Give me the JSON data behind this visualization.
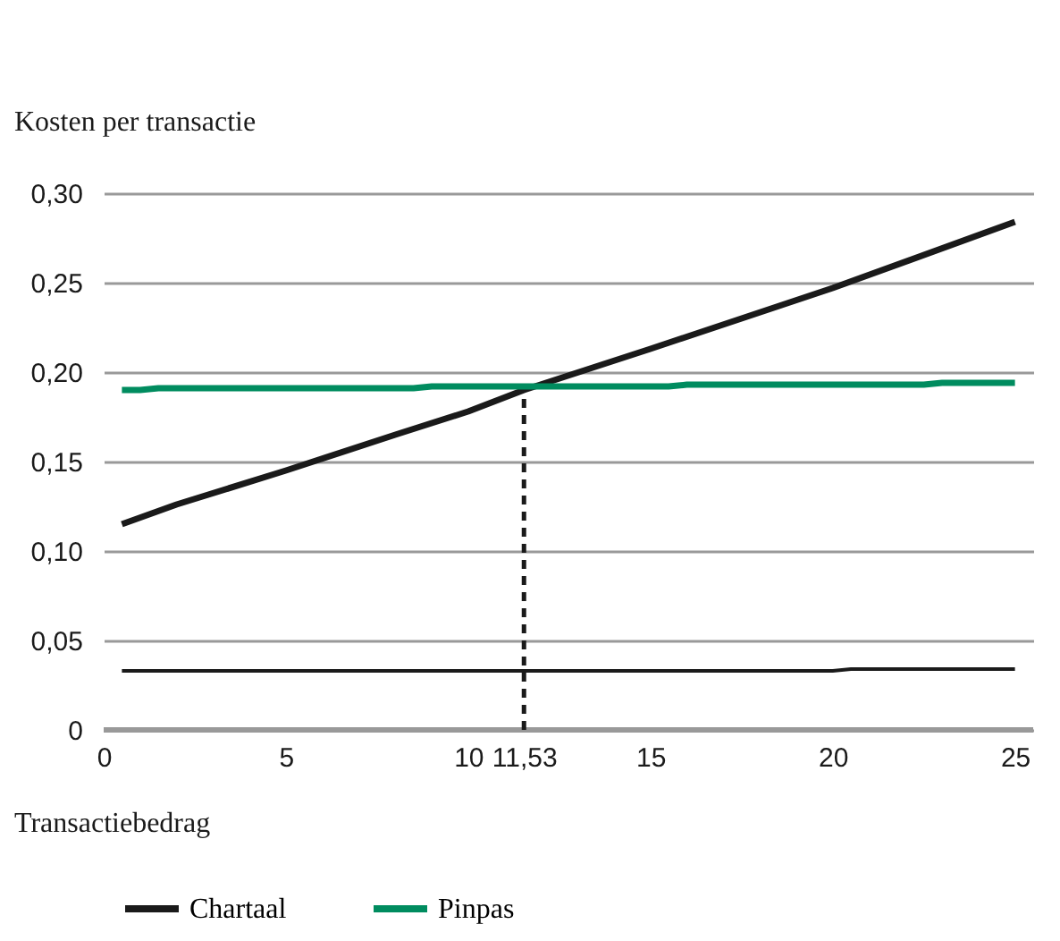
{
  "chart_data": {
    "type": "line",
    "ylabel": "Kosten per transactie",
    "xlabel": "Transactiebedrag",
    "xlim": [
      0,
      25.5
    ],
    "ylim": [
      0,
      0.3
    ],
    "xticks": [
      0,
      5,
      10,
      {
        "value": 11.53,
        "label": "11,53"
      },
      15,
      20,
      25
    ],
    "yticks": [
      0,
      {
        "value": 0.05,
        "label": "0,05"
      },
      {
        "value": 0.1,
        "label": "0,10"
      },
      {
        "value": 0.15,
        "label": "0,15"
      },
      {
        "value": 0.2,
        "label": "0,20"
      },
      {
        "value": 0.25,
        "label": "0,25"
      },
      {
        "value": 0.3,
        "label": "0,30"
      }
    ],
    "grid": "y",
    "legend": "bottom",
    "line_style": "solid",
    "marker": "none",
    "series": [
      {
        "name": "Chartaal",
        "color": "#1a1a1a",
        "x": [
          0.5,
          2,
          5,
          8,
          10,
          11.53,
          15,
          20,
          25
        ],
        "values": [
          0.115,
          0.126,
          0.145,
          0.165,
          0.178,
          0.19,
          0.213,
          0.247,
          0.284
        ]
      },
      {
        "name": "Pinpas",
        "color": "#008c5f",
        "x": [
          0.5,
          1,
          1.5,
          8.5,
          9,
          15.5,
          16,
          22.5,
          23,
          25
        ],
        "values": [
          0.19,
          0.19,
          0.191,
          0.191,
          0.192,
          0.192,
          0.193,
          0.193,
          0.194,
          0.194
        ]
      },
      {
        "color": "#1a1a1a",
        "x": [
          0.5,
          20,
          20.5,
          25
        ],
        "values": [
          0.033,
          0.033,
          0.034,
          0.034
        ]
      }
    ],
    "ref_lines": [
      {
        "axis": "x",
        "value": 11.53,
        "color": "#1a1a1a",
        "line_style": "dashed"
      }
    ]
  }
}
